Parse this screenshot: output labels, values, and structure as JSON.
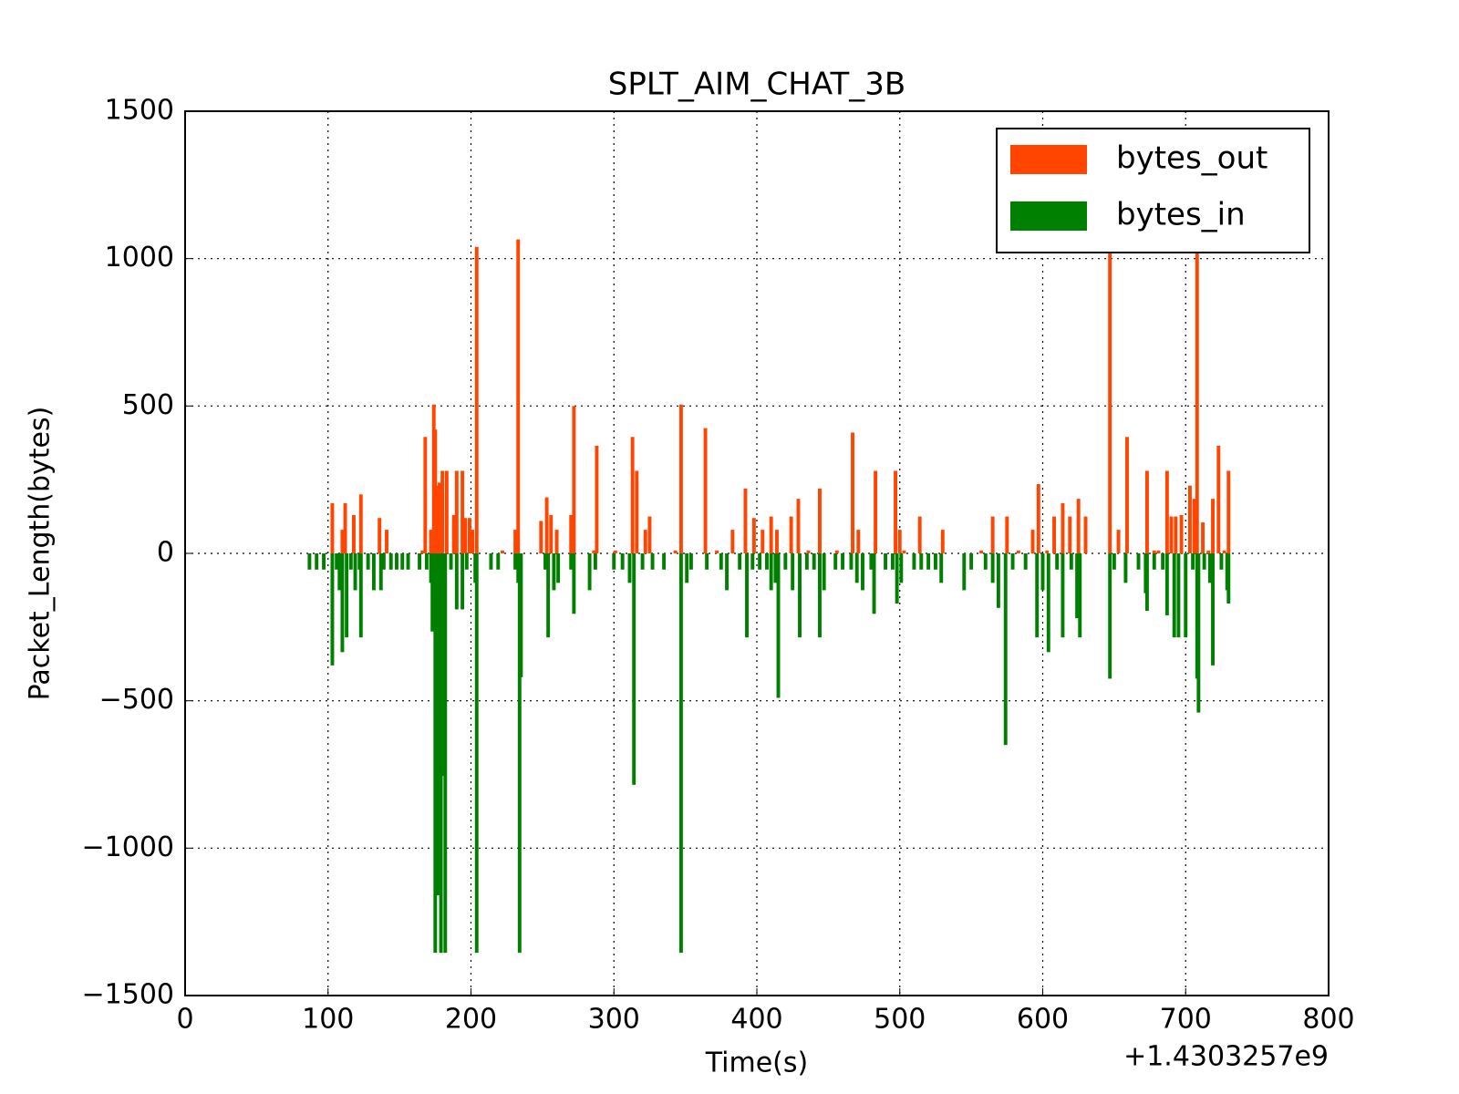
{
  "chart_data": {
    "type": "bar",
    "title": "SPLT_AIM_CHAT_3B",
    "x_label": "Time(s)",
    "y_label": "Packet_Length(bytes)",
    "x_offset_label": "+1.4303257e9",
    "xlim": [
      0,
      800
    ],
    "xticks": [
      0,
      100,
      200,
      300,
      400,
      500,
      600,
      700,
      800
    ],
    "ylim": [
      -1500,
      1500
    ],
    "yticks": [
      {
        "value": -1500,
        "label": "−1500"
      },
      {
        "value": -1000,
        "label": "−1000"
      },
      {
        "value": -500,
        "label": "−500"
      },
      0,
      500,
      1000,
      1500
    ],
    "grid": true,
    "legend": "upper right",
    "series": [
      {
        "name": "bytes_out",
        "color": "#ff4500",
        "x": [
          103,
          110,
          112,
          118,
          123,
          136,
          141,
          166,
          168,
          172,
          174,
          175,
          177,
          178,
          180,
          183,
          188,
          190,
          194,
          196,
          199,
          201,
          204,
          222,
          231,
          233,
          249,
          253,
          256,
          260,
          270,
          272,
          286,
          288,
          301,
          313,
          316,
          322,
          325,
          343,
          347,
          364,
          372,
          383,
          392,
          398,
          404,
          410,
          414,
          424,
          429,
          436,
          444,
          456,
          467,
          471,
          483,
          497,
          500,
          503,
          514,
          530,
          557,
          565,
          575,
          583,
          593,
          597,
          603,
          608,
          614,
          619,
          625,
          630,
          647,
          653,
          659,
          673,
          678,
          681,
          687,
          690,
          693,
          697,
          703,
          706,
          708,
          712,
          716,
          719,
          723,
          727,
          730
        ],
        "values": [
          170,
          80,
          170,
          130,
          200,
          120,
          80,
          10,
          395,
          80,
          505,
          420,
          230,
          240,
          280,
          280,
          130,
          280,
          280,
          120,
          120,
          80,
          1040,
          10,
          80,
          1065,
          110,
          190,
          130,
          80,
          130,
          500,
          10,
          365,
          10,
          395,
          280,
          80,
          125,
          10,
          505,
          425,
          10,
          80,
          220,
          120,
          80,
          125,
          80,
          125,
          185,
          10,
          220,
          10,
          410,
          80,
          280,
          280,
          80,
          10,
          125,
          80,
          10,
          125,
          125,
          10,
          80,
          235,
          10,
          125,
          170,
          125,
          185,
          125,
          1040,
          80,
          395,
          280,
          10,
          10,
          280,
          125,
          125,
          130,
          230,
          185,
          1040,
          105,
          10,
          185,
          365,
          10,
          280
        ]
      },
      {
        "name": "bytes_in",
        "color": "#008000",
        "x": [
          87,
          92,
          97,
          103,
          106,
          108,
          110,
          113,
          116,
          119,
          122,
          123,
          128,
          132,
          137,
          139,
          144,
          148,
          152,
          156,
          164,
          169,
          172,
          173,
          175,
          177,
          179,
          180,
          182,
          186,
          190,
          194,
          197,
          203,
          204,
          214,
          219,
          231,
          233,
          234,
          235,
          252,
          254,
          258,
          261,
          270,
          272,
          283,
          287,
          300,
          306,
          311,
          314,
          320,
          327,
          335,
          347,
          351,
          354,
          365,
          375,
          379,
          388,
          393,
          397,
          402,
          407,
          410,
          413,
          415,
          420,
          425,
          430,
          435,
          440,
          444,
          447,
          455,
          460,
          466,
          470,
          474,
          480,
          482,
          490,
          495,
          498,
          501,
          510,
          515,
          520,
          525,
          529,
          545,
          550,
          560,
          565,
          569,
          574,
          579,
          588,
          596,
          600,
          604,
          610,
          614,
          620,
          624,
          626,
          647,
          650,
          658,
          667,
          672,
          673,
          678,
          684,
          687,
          692,
          695,
          700,
          705,
          708,
          709,
          713,
          717,
          719,
          725,
          729,
          730
        ],
        "values": [
          -55,
          -55,
          -55,
          -380,
          -55,
          -125,
          -335,
          -285,
          -55,
          -125,
          -55,
          -285,
          -55,
          -125,
          -125,
          -55,
          -55,
          -55,
          -55,
          -55,
          -55,
          -55,
          -100,
          -265,
          -1355,
          -1160,
          -1355,
          -755,
          -1355,
          -55,
          -190,
          -190,
          -55,
          -100,
          -1355,
          -55,
          -55,
          -55,
          -100,
          -1355,
          -420,
          -55,
          -285,
          -125,
          -100,
          -55,
          -205,
          -125,
          -55,
          -55,
          -55,
          -100,
          -785,
          -55,
          -55,
          -55,
          -1355,
          -100,
          -55,
          -55,
          -55,
          -125,
          -55,
          -285,
          -55,
          -55,
          -55,
          -125,
          -100,
          -490,
          -55,
          -125,
          -285,
          -55,
          -55,
          -285,
          -125,
          -55,
          -55,
          -55,
          -100,
          -125,
          -55,
          -205,
          -55,
          -55,
          -170,
          -100,
          -55,
          -55,
          -55,
          -55,
          -100,
          -125,
          -55,
          -55,
          -100,
          -185,
          -650,
          -55,
          -55,
          -285,
          -125,
          -335,
          -55,
          -285,
          -55,
          -220,
          -285,
          -425,
          -55,
          -100,
          -55,
          -135,
          -195,
          -55,
          -55,
          -210,
          -285,
          -285,
          -285,
          -55,
          -425,
          -540,
          -55,
          -100,
          -380,
          -55,
          -125,
          -170
        ]
      }
    ]
  }
}
